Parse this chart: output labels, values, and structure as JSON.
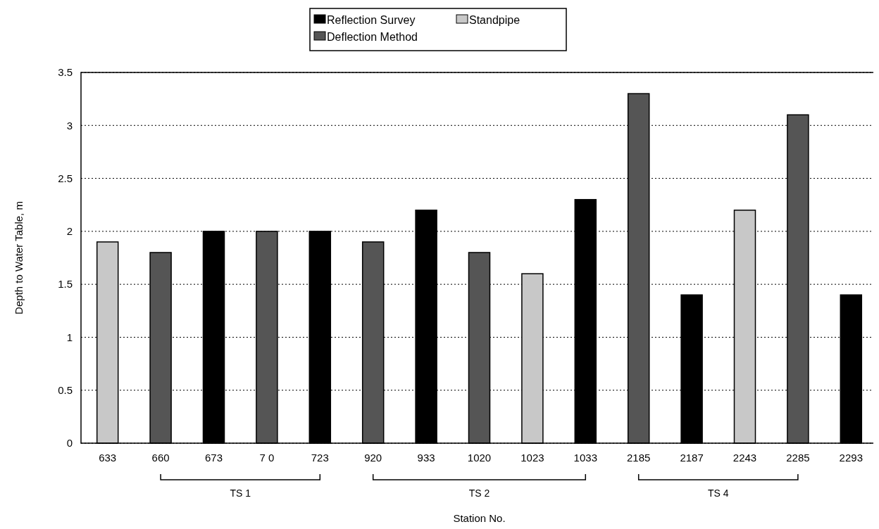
{
  "chart_data": {
    "type": "bar",
    "xlabel": "Station No.",
    "ylabel": "Depth to Water Table, m",
    "categories": [
      "633",
      "660",
      "673",
      "7 0",
      "723",
      "920",
      "933",
      "1020",
      "1023",
      "1033",
      "2185",
      "2187",
      "2243",
      "2285",
      "2293"
    ],
    "series": [
      {
        "name": "Reflection Survey",
        "color": "#000000",
        "values": [
          null,
          null,
          2.0,
          null,
          2.0,
          null,
          2.2,
          null,
          null,
          2.3,
          null,
          1.4,
          null,
          null,
          1.4
        ]
      },
      {
        "name": "Standpipe",
        "color": "#c8c8c8",
        "values": [
          1.9,
          null,
          null,
          null,
          null,
          null,
          null,
          null,
          1.6,
          null,
          null,
          null,
          2.2,
          null,
          null
        ]
      },
      {
        "name": "Deflection Method",
        "color": "#555555",
        "values": [
          null,
          1.8,
          null,
          2.0,
          null,
          1.9,
          null,
          1.8,
          null,
          null,
          3.3,
          null,
          null,
          3.1,
          null
        ]
      }
    ],
    "ylim": [
      0,
      3.5
    ],
    "yticks": [
      0,
      0.5,
      1,
      1.5,
      2,
      2.5,
      3,
      3.5
    ],
    "grid": "y",
    "legend": "top",
    "annotations": [
      "TS 1",
      "TS 2",
      "TS 4"
    ]
  }
}
